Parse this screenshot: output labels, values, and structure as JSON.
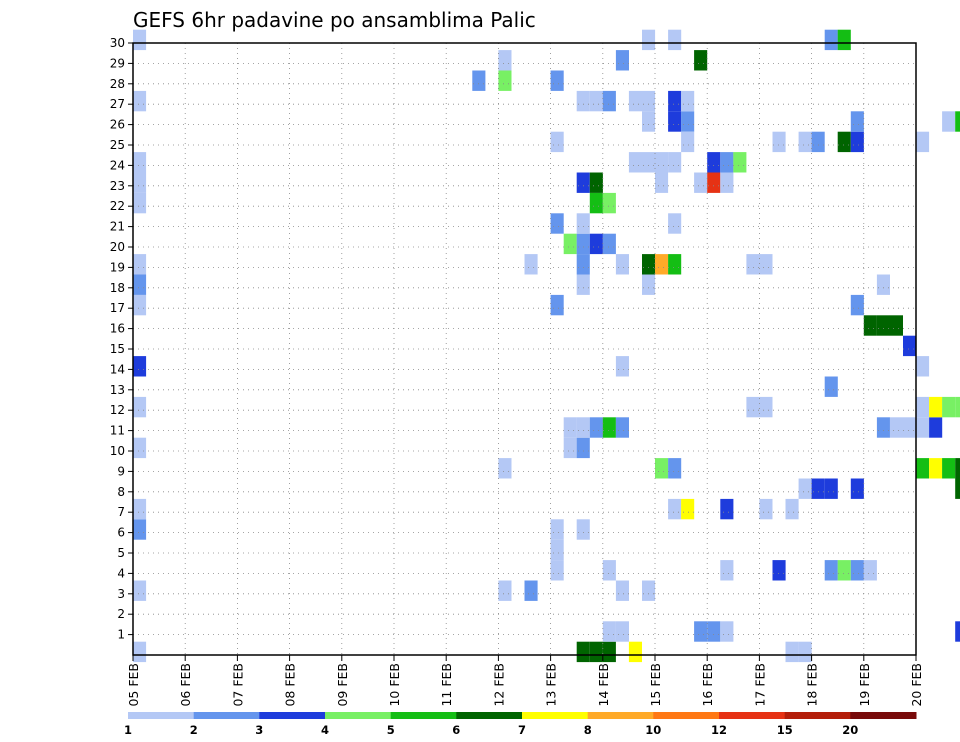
{
  "chart_data": {
    "type": "heatmap",
    "title": "GEFS 6hr padavine po ansamblima Palic",
    "xlabel": "",
    "ylabel": "",
    "y_ticks": [
      1,
      2,
      3,
      4,
      5,
      6,
      7,
      8,
      9,
      10,
      11,
      12,
      13,
      14,
      15,
      16,
      17,
      18,
      19,
      20,
      21,
      22,
      23,
      24,
      25,
      26,
      27,
      28,
      29,
      30
    ],
    "x_ticks": [
      "05 FEB",
      "06 FEB",
      "07 FEB",
      "08 FEB",
      "09 FEB",
      "10 FEB",
      "11 FEB",
      "12 FEB",
      "13 FEB",
      "14 FEB",
      "15 FEB",
      "16 FEB",
      "17 FEB",
      "18 FEB",
      "19 FEB",
      "20 FEB"
    ],
    "x_range_days": [
      0,
      15
    ],
    "y_range_members": [
      0,
      30
    ],
    "grid": true,
    "legend_position": "bottom",
    "legend": {
      "colors": [
        "#b4c8f5",
        "#6495ed",
        "#1e3cdc",
        "#78f064",
        "#14be14",
        "#006400",
        "#ffff00",
        "#ffaa28",
        "#ff7814",
        "#e63214",
        "#b41e0a",
        "#780a0a"
      ],
      "labels": [
        "1",
        "2",
        "3",
        "4",
        "5",
        "6",
        "7",
        "8",
        "10",
        "12",
        "15",
        "20"
      ]
    },
    "cells": [
      [
        0,
        0,
        1
      ],
      [
        0,
        3,
        1
      ],
      [
        0,
        6,
        2
      ],
      [
        0,
        7,
        1
      ],
      [
        0,
        10,
        1
      ],
      [
        0,
        12,
        1
      ],
      [
        0,
        14,
        3
      ],
      [
        0,
        17,
        1
      ],
      [
        0,
        18,
        2
      ],
      [
        0,
        19,
        1
      ],
      [
        0,
        22,
        1
      ],
      [
        0,
        23,
        1
      ],
      [
        0,
        24,
        1
      ],
      [
        0,
        27,
        1
      ],
      [
        0,
        30,
        1
      ],
      [
        7,
        3,
        1
      ],
      [
        7,
        9,
        1
      ],
      [
        7,
        29,
        1
      ],
      [
        7.5,
        3,
        2
      ],
      [
        6.5,
        28,
        2
      ],
      [
        7,
        28,
        4
      ],
      [
        7.5,
        19,
        1
      ],
      [
        8,
        4,
        1
      ],
      [
        8,
        5,
        1
      ],
      [
        8,
        6,
        1
      ],
      [
        8,
        17,
        2
      ],
      [
        8,
        21,
        2
      ],
      [
        8,
        25,
        1
      ],
      [
        8,
        28,
        2
      ],
      [
        8.25,
        10,
        1
      ],
      [
        8.25,
        11,
        1
      ],
      [
        8.25,
        20,
        4
      ],
      [
        8.5,
        6,
        1
      ],
      [
        8.5,
        0,
        6
      ],
      [
        8.5,
        10,
        2
      ],
      [
        8.5,
        11,
        1
      ],
      [
        8.5,
        18,
        1
      ],
      [
        8.5,
        19,
        2
      ],
      [
        8.5,
        20,
        2
      ],
      [
        8.5,
        21,
        1
      ],
      [
        8.5,
        23,
        3
      ],
      [
        8.5,
        27,
        1
      ],
      [
        8.75,
        0,
        6
      ],
      [
        8.75,
        11,
        2
      ],
      [
        8.75,
        22,
        5
      ],
      [
        8.75,
        23,
        6
      ],
      [
        8.75,
        20,
        3
      ],
      [
        8.75,
        27,
        1
      ],
      [
        9,
        0,
        6
      ],
      [
        9,
        1,
        1
      ],
      [
        9,
        11,
        5
      ],
      [
        9,
        20,
        2
      ],
      [
        9,
        22,
        4
      ],
      [
        9,
        27,
        2
      ],
      [
        9,
        4,
        1
      ],
      [
        9.25,
        1,
        1
      ],
      [
        9.25,
        3,
        1
      ],
      [
        9.25,
        11,
        2
      ],
      [
        9.25,
        19,
        1
      ],
      [
        9.25,
        14,
        1
      ],
      [
        9.25,
        29,
        2
      ],
      [
        9.5,
        0,
        7
      ],
      [
        9.5,
        24,
        1
      ],
      [
        9.5,
        27,
        1
      ],
      [
        9.75,
        3,
        1
      ],
      [
        9.75,
        18,
        1
      ],
      [
        9.75,
        19,
        6
      ],
      [
        9.75,
        24,
        1
      ],
      [
        9.75,
        26,
        1
      ],
      [
        9.75,
        27,
        1
      ],
      [
        9.75,
        30,
        1
      ],
      [
        10,
        19,
        8
      ],
      [
        10,
        23,
        1
      ],
      [
        10,
        24,
        1
      ],
      [
        10,
        9,
        4
      ],
      [
        10.25,
        7,
        1
      ],
      [
        10.25,
        9,
        2
      ],
      [
        10.25,
        19,
        5
      ],
      [
        10.25,
        21,
        1
      ],
      [
        10.25,
        24,
        1
      ],
      [
        10.25,
        26,
        3
      ],
      [
        10.25,
        27,
        3
      ],
      [
        10.25,
        30,
        1
      ],
      [
        10.5,
        26,
        2
      ],
      [
        10.5,
        27,
        1
      ],
      [
        10.5,
        25,
        1
      ],
      [
        10.5,
        7,
        7
      ],
      [
        10.75,
        1,
        2
      ],
      [
        10.75,
        23,
        1
      ],
      [
        10.75,
        29,
        6
      ],
      [
        11,
        1,
        2
      ],
      [
        11,
        23,
        10
      ],
      [
        11,
        24,
        3
      ],
      [
        11.25,
        1,
        1
      ],
      [
        11.25,
        4,
        1
      ],
      [
        11.25,
        23,
        1
      ],
      [
        11.25,
        24,
        2
      ],
      [
        11.25,
        7,
        3
      ],
      [
        11.5,
        24,
        4
      ],
      [
        11.75,
        19,
        1
      ],
      [
        11.75,
        12,
        1
      ],
      [
        12,
        19,
        1
      ],
      [
        12,
        7,
        1
      ],
      [
        12,
        12,
        1
      ],
      [
        12.25,
        4,
        3
      ],
      [
        12.25,
        25,
        1
      ],
      [
        12.5,
        0,
        1
      ],
      [
        12.5,
        7,
        1
      ],
      [
        12.75,
        0,
        1
      ],
      [
        12.75,
        25,
        1
      ],
      [
        12.75,
        8,
        1
      ],
      [
        13,
        8,
        3
      ],
      [
        13,
        25,
        2
      ],
      [
        13.25,
        4,
        2
      ],
      [
        13.25,
        8,
        3
      ],
      [
        13.25,
        13,
        2
      ],
      [
        13.25,
        30,
        2
      ],
      [
        13.5,
        4,
        4
      ],
      [
        13.5,
        30,
        5
      ],
      [
        13.5,
        25,
        6
      ],
      [
        13.75,
        4,
        2
      ],
      [
        13.75,
        17,
        2
      ],
      [
        13.75,
        25,
        3
      ],
      [
        13.75,
        26,
        2
      ],
      [
        13.75,
        8,
        3
      ],
      [
        14,
        4,
        1
      ],
      [
        14,
        16,
        6
      ],
      [
        14.25,
        16,
        6
      ],
      [
        14.25,
        18,
        1
      ],
      [
        14.25,
        11,
        2
      ],
      [
        14.5,
        16,
        6
      ],
      [
        14.5,
        11,
        1
      ],
      [
        14.75,
        11,
        1
      ],
      [
        14.75,
        15,
        3
      ],
      [
        15,
        14,
        1
      ],
      [
        15,
        11,
        1
      ],
      [
        15,
        25,
        1
      ],
      [
        15,
        9,
        5
      ],
      [
        15,
        12,
        1
      ],
      [
        15.25,
        11,
        3
      ],
      [
        15.25,
        12,
        7
      ],
      [
        15.25,
        9,
        7
      ],
      [
        15.5,
        12,
        4
      ],
      [
        15.5,
        9,
        5
      ],
      [
        15.5,
        26,
        1
      ],
      [
        15.75,
        12,
        4
      ],
      [
        15.75,
        9,
        6
      ],
      [
        15.75,
        26,
        5
      ],
      [
        15.75,
        1,
        3
      ],
      [
        15.75,
        8,
        6
      ]
    ]
  }
}
